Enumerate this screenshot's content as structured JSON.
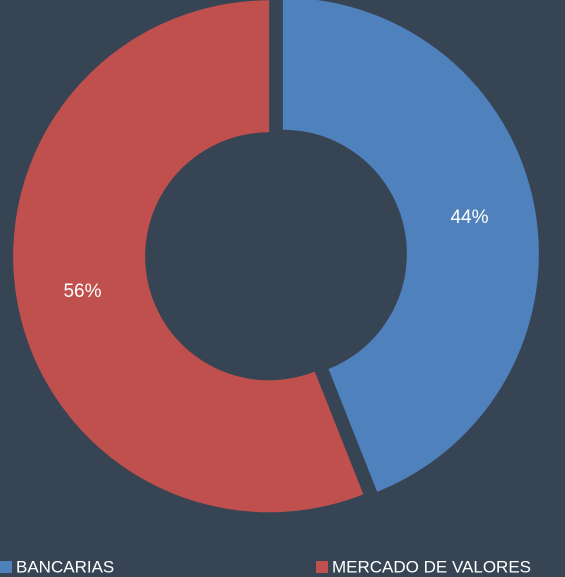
{
  "chart_data": {
    "type": "donut",
    "categories": [
      "BANCARIAS",
      "MERCADO DE VALORES"
    ],
    "values": [
      44,
      56
    ],
    "value_labels": [
      "44%",
      "56%"
    ],
    "colors": [
      "#4f81bd",
      "#c0504d"
    ]
  }
}
